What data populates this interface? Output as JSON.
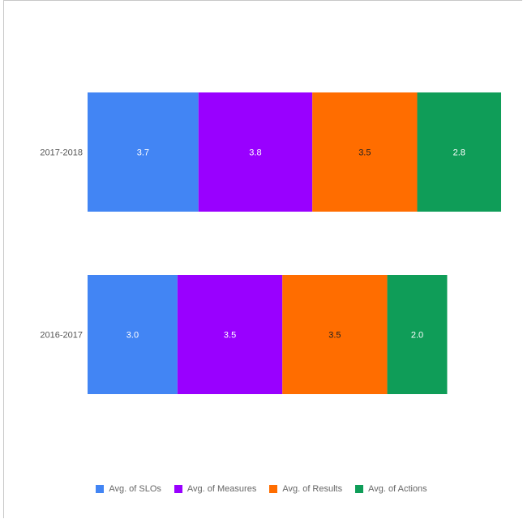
{
  "chart_data": {
    "type": "bar",
    "orientation": "horizontal",
    "stacked": true,
    "categories": [
      "2017-2018",
      "2016-2017"
    ],
    "series": [
      {
        "name": "Avg. of SLOs",
        "color": "#4285F4",
        "values": [
          3.7,
          3.0
        ],
        "labels": [
          "3.7",
          "3.0"
        ],
        "label_color": "#ffffff"
      },
      {
        "name": "Avg. of Measures",
        "color": "#9900FF",
        "values": [
          3.8,
          3.5
        ],
        "labels": [
          "3.8",
          "3.5"
        ],
        "label_color": "#ffffff"
      },
      {
        "name": "Avg. of Results",
        "color": "#FF6D00",
        "values": [
          3.5,
          3.5
        ],
        "labels": [
          "3.5",
          "3.5"
        ],
        "label_color": "#222222"
      },
      {
        "name": "Avg. of Actions",
        "color": "#0F9D58",
        "values": [
          2.8,
          2.0
        ],
        "labels": [
          "2.8",
          "2.0"
        ],
        "label_color": "#ffffff"
      }
    ],
    "xlim": [
      0,
      13.8
    ],
    "grid": false,
    "legend_position": "bottom"
  }
}
